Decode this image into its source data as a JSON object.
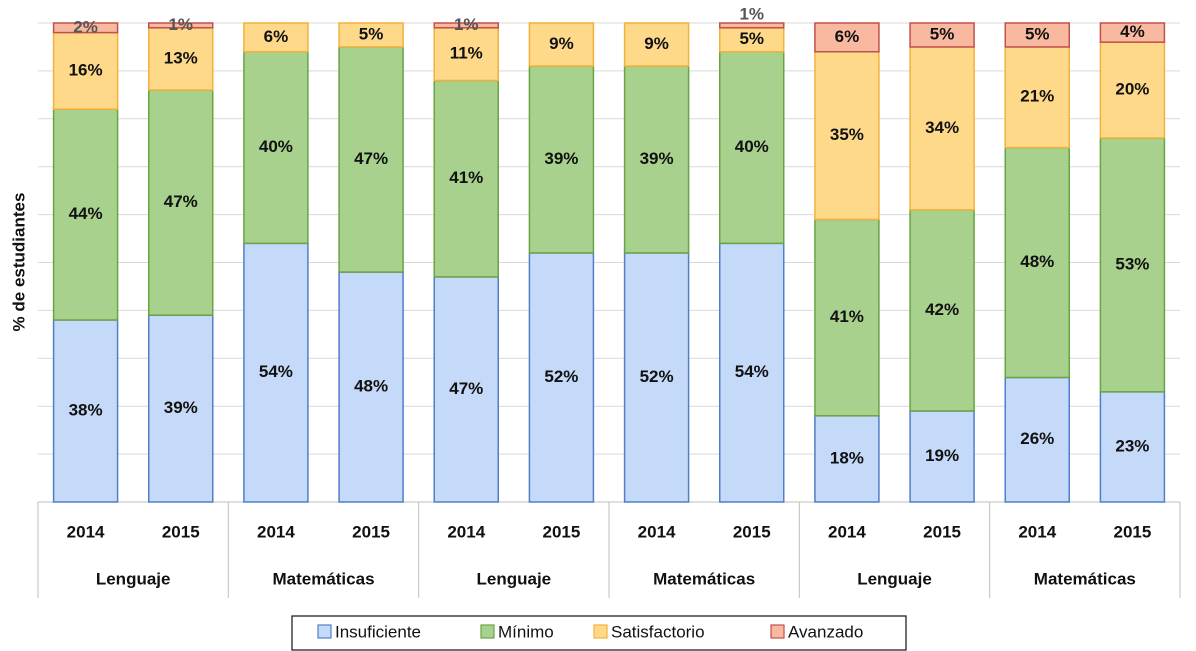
{
  "chart_data": {
    "type": "stacked_bar",
    "y_label": "% de estudiantes",
    "categories": [
      "2014",
      "2015",
      "2014",
      "2015",
      "2014",
      "2015",
      "2014",
      "2015",
      "2014",
      "2015",
      "2014",
      "2015"
    ],
    "groups": [
      "Lenguaje",
      "Matemáticas",
      "Lenguaje",
      "Matemáticas",
      "Lenguaje",
      "Matemáticas"
    ],
    "ylim": [
      0,
      100
    ],
    "yticks": [
      0,
      10,
      20,
      30,
      40,
      50,
      60,
      70,
      80,
      90,
      100
    ],
    "grid": true,
    "legend": "bottom",
    "series": [
      {
        "name": "Insuficiente",
        "color": "#c5d9f8",
        "stroke": "#4f7fc9",
        "values": [
          38,
          39,
          54,
          48,
          47,
          52,
          52,
          54,
          18,
          19,
          26,
          23
        ],
        "value_labels": [
          "38%",
          "39%",
          "54%",
          "48%",
          "47%",
          "52%",
          "52%",
          "54%",
          "18%",
          "19%",
          "26%",
          "23%"
        ]
      },
      {
        "name": "Mínimo",
        "color": "#a9d18e",
        "stroke": "#6aa343",
        "values": [
          44,
          47,
          40,
          47,
          41,
          39,
          39,
          40,
          41,
          42,
          48,
          53
        ],
        "value_labels": [
          "44%",
          "47%",
          "40%",
          "47%",
          "41%",
          "39%",
          "39%",
          "40%",
          "41%",
          "42%",
          "48%",
          "53%"
        ]
      },
      {
        "name": "Satisfactorio",
        "color": "#ffd98a",
        "stroke": "#f2b13a",
        "values": [
          16,
          13,
          6,
          5,
          11,
          9,
          9,
          5,
          35,
          34,
          21,
          20
        ],
        "value_labels": [
          "16%",
          "13%",
          "6%",
          "5%",
          "11%",
          "9%",
          "9%",
          "5%",
          "35%",
          "34%",
          "21%",
          "20%"
        ]
      },
      {
        "name": "Avanzado",
        "color": "#f8b9a0",
        "stroke": "#c0504d",
        "values": [
          2,
          1,
          null,
          null,
          1,
          null,
          null,
          1,
          6,
          5,
          5,
          4
        ],
        "value_labels": [
          "2%",
          "1%",
          null,
          null,
          "1%",
          null,
          null,
          "1%",
          "6%",
          "5%",
          "5%",
          "4%"
        ]
      }
    ]
  }
}
